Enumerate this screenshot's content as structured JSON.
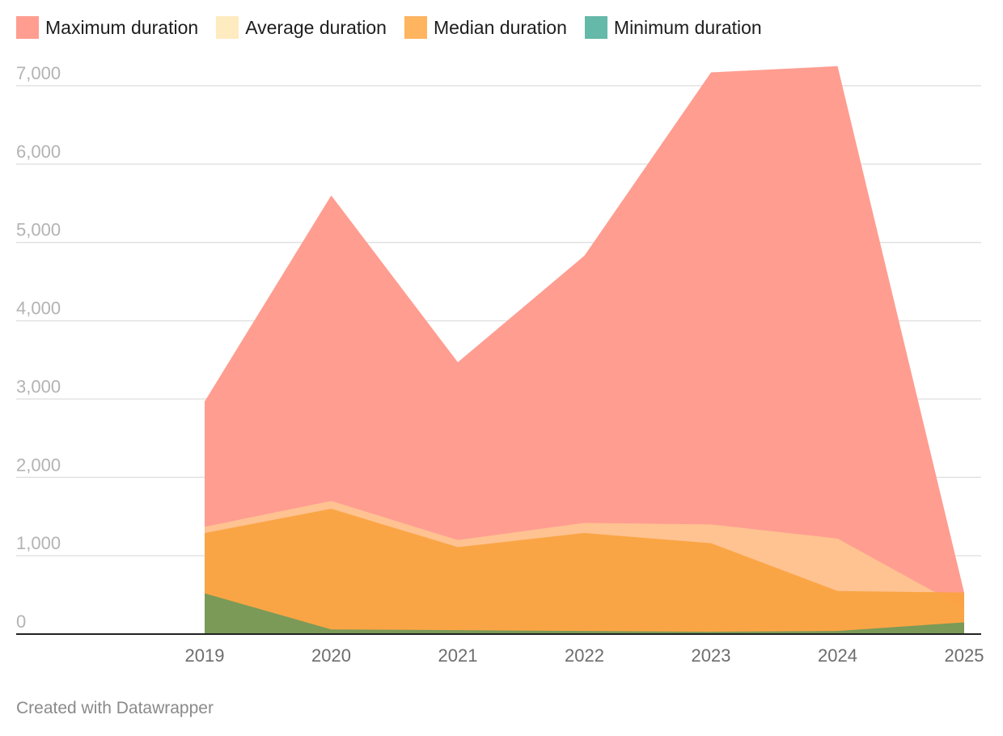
{
  "legend": [
    {
      "label": "Maximum duration",
      "color": "#ff9d91"
    },
    {
      "label": "Average duration",
      "color": "#ffebc0"
    },
    {
      "label": "Median duration",
      "color": "#ffb460"
    },
    {
      "label": "Minimum duration",
      "color": "#64b9a8"
    }
  ],
  "footer": {
    "credit": "Created with Datawrapper"
  },
  "chart_data": {
    "type": "area",
    "x": [
      "2019",
      "2020",
      "2021",
      "2022",
      "2023",
      "2024",
      "2025"
    ],
    "ylim": [
      0,
      7000
    ],
    "yticks": [
      0,
      1000,
      2000,
      3000,
      4000,
      5000,
      6000,
      7000
    ],
    "yticklabels": [
      "0",
      "1,000",
      "2,000",
      "3,000",
      "4,000",
      "5,000",
      "6,000",
      "7,000"
    ],
    "grid": true,
    "legend_position": "top-left",
    "series": [
      {
        "name": "Maximum duration",
        "color": "#ff9d91",
        "values": [
          2970,
          5600,
          3470,
          4830,
          7170,
          7250,
          530
        ]
      },
      {
        "name": "Average duration",
        "color": "#ffc691",
        "values": [
          1370,
          1700,
          1200,
          1420,
          1400,
          1220,
          330
        ]
      },
      {
        "name": "Median duration",
        "color": "#faa33f",
        "values": [
          1290,
          1600,
          1110,
          1290,
          1160,
          550,
          530
        ]
      },
      {
        "name": "Minimum duration",
        "color": "#64985a",
        "values": [
          520,
          60,
          50,
          40,
          30,
          40,
          150
        ]
      }
    ]
  }
}
